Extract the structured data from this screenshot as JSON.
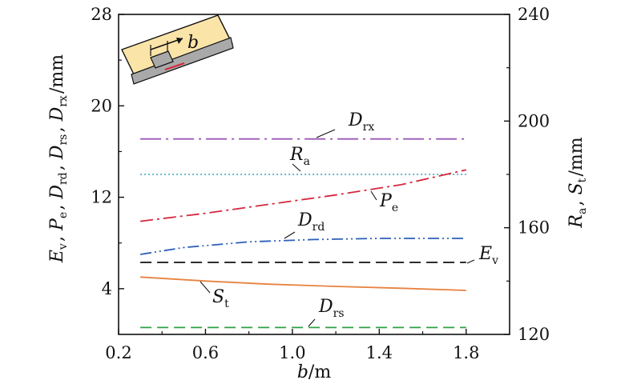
{
  "chart_data": {
    "type": "line",
    "xlabel": "b/m",
    "ylabel_left": "Ev, Pe, Drd, Drs, Drx/mm",
    "ylabel_right": "Ra, St/mm",
    "xlim": [
      0.2,
      2.0
    ],
    "ylim_left": [
      0,
      28
    ],
    "ylim_right": [
      120,
      240
    ],
    "x_ticks": [
      "0.2",
      "0.6",
      "1.0",
      "1.4",
      "1.8"
    ],
    "y_left_ticks": [
      "4",
      "12",
      "20",
      "28"
    ],
    "y_right_ticks": [
      "120",
      "160",
      "200",
      "240"
    ],
    "grid": false,
    "legend": "inline labels",
    "inset_label": "b",
    "series": [
      {
        "name": "Drx",
        "axis": "left",
        "color": "#9b59b6",
        "dash": "long-dash-dot",
        "x": [
          0.3,
          1.8
        ],
        "y": [
          17.1,
          17.1
        ],
        "label": {
          "main": "D",
          "sub": "rx"
        }
      },
      {
        "name": "Ra",
        "axis": "right",
        "color": "#2e9fc4",
        "dash": "dotted",
        "x": [
          0.3,
          1.8
        ],
        "y": [
          180,
          180
        ],
        "label": {
          "main": "R",
          "sub": "a"
        }
      },
      {
        "name": "Pe",
        "axis": "left",
        "color": "#d6273c",
        "dash": "dash-dot",
        "x": [
          0.3,
          0.6,
          0.9,
          1.2,
          1.5,
          1.8
        ],
        "y": [
          9.9,
          10.6,
          11.4,
          12.2,
          13.1,
          14.4
        ],
        "label": {
          "main": "P",
          "sub": "e"
        }
      },
      {
        "name": "Drd",
        "axis": "left",
        "color": "#2c5fb8",
        "dash": "dash-dot-dot",
        "x": [
          0.3,
          0.5,
          0.8,
          1.1,
          1.4,
          1.8
        ],
        "y": [
          7.0,
          7.6,
          8.1,
          8.3,
          8.4,
          8.4
        ],
        "label": {
          "main": "D",
          "sub": "rd"
        }
      },
      {
        "name": "Ev",
        "axis": "left",
        "color": "#111111",
        "dash": "dashed",
        "x": [
          0.3,
          1.8
        ],
        "y": [
          6.3,
          6.3
        ],
        "label": {
          "main": "E",
          "sub": "v"
        }
      },
      {
        "name": "St",
        "axis": "right",
        "color": "#e8823f",
        "dash": "solid",
        "x": [
          0.3,
          0.6,
          0.9,
          1.2,
          1.5,
          1.8
        ],
        "y": [
          141.5,
          140.0,
          138.8,
          138.0,
          137.3,
          136.5
        ],
        "label": {
          "main": "S",
          "sub": "t"
        }
      },
      {
        "name": "Drs",
        "axis": "left",
        "color": "#2ea043",
        "dash": "dashed",
        "x": [
          0.3,
          1.8
        ],
        "y": [
          0.6,
          0.6
        ],
        "label": {
          "main": "D",
          "sub": "rs"
        }
      }
    ]
  }
}
